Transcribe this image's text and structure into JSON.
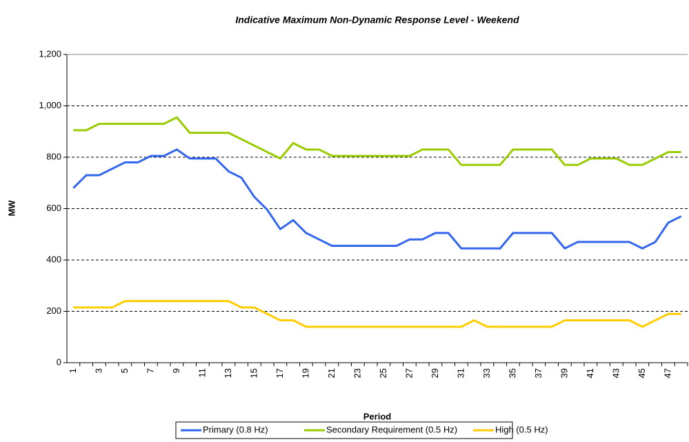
{
  "chart_data": {
    "type": "line",
    "title": "Indicative Maximum Non-Dynamic Response Level - Weekend",
    "x_label": "Period",
    "y_label": "MW",
    "x": [
      1,
      2,
      3,
      4,
      5,
      6,
      7,
      8,
      9,
      10,
      11,
      12,
      13,
      14,
      15,
      16,
      17,
      18,
      19,
      20,
      21,
      22,
      23,
      24,
      25,
      26,
      27,
      28,
      29,
      30,
      31,
      32,
      33,
      34,
      35,
      36,
      37,
      38,
      39,
      40,
      41,
      42,
      43,
      44,
      45,
      46,
      47,
      48
    ],
    "xlim": [
      0.5,
      48.5
    ],
    "xticks": [
      1,
      3,
      5,
      7,
      9,
      11,
      13,
      15,
      17,
      19,
      21,
      23,
      25,
      27,
      29,
      31,
      33,
      35,
      37,
      39,
      41,
      43,
      45,
      47
    ],
    "ylim": [
      0,
      1200
    ],
    "yticks": [
      0,
      200,
      400,
      600,
      800,
      {
        "value": 1000,
        "label": "1,000"
      },
      {
        "value": 1200,
        "label": "1,200"
      }
    ],
    "grid": true,
    "legend": "bottom",
    "series": [
      {
        "name": "Primary (0.8 Hz)",
        "color": "#3366ee",
        "values": [
          680,
          730,
          730,
          755,
          780,
          780,
          805,
          805,
          830,
          795,
          795,
          795,
          745,
          720,
          645,
          595,
          520,
          555,
          505,
          480,
          455,
          455,
          455,
          455,
          455,
          455,
          480,
          480,
          505,
          505,
          445,
          445,
          445,
          445,
          505,
          505,
          505,
          505,
          445,
          470,
          470,
          470,
          470,
          470,
          445,
          470,
          545,
          570
        ]
      },
      {
        "name": "Secondary Requirement (0.5 Hz)",
        "color": "#99cc00",
        "values": [
          905,
          905,
          930,
          930,
          930,
          930,
          930,
          930,
          955,
          895,
          895,
          895,
          895,
          870,
          845,
          820,
          795,
          855,
          830,
          830,
          805,
          805,
          805,
          805,
          805,
          805,
          805,
          830,
          830,
          830,
          770,
          770,
          770,
          770,
          830,
          830,
          830,
          830,
          770,
          770,
          795,
          795,
          795,
          770,
          770,
          795,
          820,
          820
        ]
      },
      {
        "name": "High (0.5 Hz)",
        "color": "#ffcc00",
        "values": [
          215,
          215,
          215,
          215,
          240,
          240,
          240,
          240,
          240,
          240,
          240,
          240,
          240,
          215,
          215,
          190,
          165,
          165,
          140,
          140,
          140,
          140,
          140,
          140,
          140,
          140,
          140,
          140,
          140,
          140,
          140,
          165,
          140,
          140,
          140,
          140,
          140,
          140,
          165,
          165,
          165,
          165,
          165,
          165,
          140,
          165,
          190,
          190
        ]
      }
    ]
  }
}
